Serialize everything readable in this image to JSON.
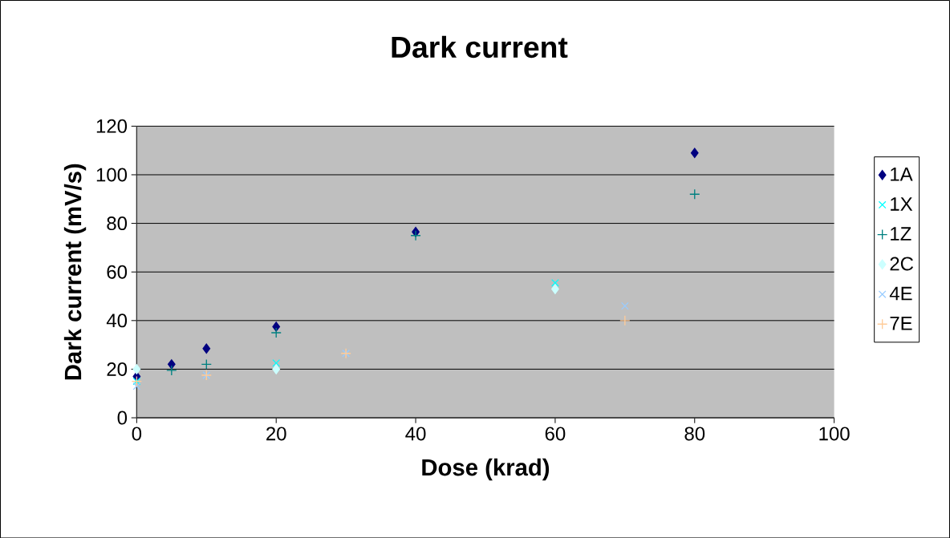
{
  "chart_data": {
    "type": "scatter",
    "title": "Dark current",
    "xlabel": "Dose (krad)",
    "ylabel": "Dark current (mV/s)",
    "xlim": [
      0,
      100
    ],
    "xticks": [
      0,
      20,
      40,
      60,
      80,
      100
    ],
    "ylim": [
      0,
      120
    ],
    "yticks": [
      0,
      20,
      40,
      60,
      80,
      100,
      120
    ],
    "grid": "y",
    "legend": "right",
    "series": [
      {
        "name": "1A",
        "color": "#000080",
        "marker": "diamond",
        "x": [
          0,
          5,
          10,
          20,
          40,
          80
        ],
        "values": [
          17,
          22,
          28.5,
          37.5,
          76.5,
          109
        ]
      },
      {
        "name": "1X",
        "color": "#00ffff",
        "marker": "cross",
        "x": [
          0,
          20,
          60
        ],
        "values": [
          15,
          22.5,
          55.5
        ]
      },
      {
        "name": "1Z",
        "color": "#008080",
        "marker": "plus",
        "x": [
          5,
          10,
          20,
          40,
          80
        ],
        "values": [
          19.5,
          22,
          35,
          75,
          92
        ]
      },
      {
        "name": "2C",
        "color": "#ccffff",
        "marker": "diamond",
        "x": [
          0,
          20,
          60
        ],
        "values": [
          20,
          20,
          53
        ]
      },
      {
        "name": "4E",
        "color": "#99ccff",
        "marker": "cross",
        "x": [
          0,
          10,
          30,
          70
        ],
        "values": [
          13,
          17.5,
          26.5,
          46
        ]
      },
      {
        "name": "7E",
        "color": "#ffcc99",
        "marker": "plus",
        "x": [
          0,
          10,
          30,
          70
        ],
        "values": [
          15,
          17.5,
          26.5,
          40
        ]
      }
    ]
  }
}
